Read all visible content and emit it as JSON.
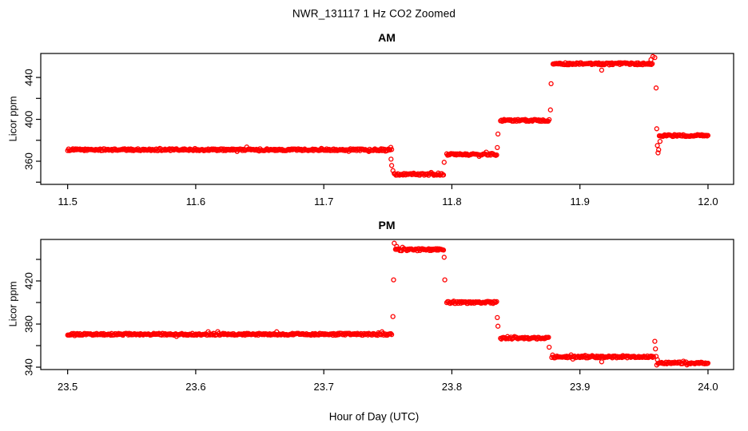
{
  "figure": {
    "title": "NWR_131117  1 Hz CO2 Zoomed",
    "xlabel": "Hour of Day (UTC)",
    "background": "#ffffff",
    "point_color": "#ff0000",
    "axis_color": "#000000"
  },
  "chart_data": [
    {
      "type": "scatter",
      "panel": "AM",
      "title": "AM",
      "ylabel": "Licor ppm",
      "marker": "open-circle",
      "grid": false,
      "xlim": [
        11.479,
        12.02
      ],
      "ylim": [
        337.9,
        462.9
      ],
      "xticks": [
        11.5,
        11.6,
        11.7,
        11.8,
        11.9,
        12.0
      ],
      "xtick_labels": [
        "11.5",
        "11.6",
        "11.7",
        "11.8",
        "11.9",
        "12.0"
      ],
      "yticks": [
        340,
        360,
        380,
        400,
        420,
        440
      ],
      "ytick_labels": [
        "",
        "360",
        "",
        "400",
        "",
        "440"
      ],
      "segments": [
        {
          "x0": 11.5,
          "x1": 11.753,
          "y": 371,
          "noise_ppm": 0.9
        },
        {
          "x0": 11.755,
          "x1": 11.7935,
          "y": 347.5,
          "noise_ppm": 0.9
        },
        {
          "x0": 11.796,
          "x1": 11.835,
          "y": 366.5,
          "noise_ppm": 0.9
        },
        {
          "x0": 11.838,
          "x1": 11.876,
          "y": 399,
          "noise_ppm": 0.9
        },
        {
          "x0": 11.879,
          "x1": 11.9565,
          "y": 453,
          "noise_ppm": 1.0
        },
        {
          "x0": 11.962,
          "x1": 12.0,
          "y": 384.5,
          "noise_ppm": 0.9
        }
      ],
      "points": [
        {
          "x": 11.7525,
          "y": 362
        },
        {
          "x": 11.753,
          "y": 356
        },
        {
          "x": 11.754,
          "y": 351
        },
        {
          "x": 11.794,
          "y": 359
        },
        {
          "x": 11.8355,
          "y": 373
        },
        {
          "x": 11.836,
          "y": 386
        },
        {
          "x": 11.877,
          "y": 409
        },
        {
          "x": 11.8775,
          "y": 434
        },
        {
          "x": 11.917,
          "y": 447
        },
        {
          "x": 11.9555,
          "y": 457
        },
        {
          "x": 11.957,
          "y": 460
        },
        {
          "x": 11.9585,
          "y": 459
        },
        {
          "x": 11.9595,
          "y": 430
        },
        {
          "x": 11.96,
          "y": 391
        },
        {
          "x": 11.9605,
          "y": 375
        },
        {
          "x": 11.961,
          "y": 368
        },
        {
          "x": 11.9615,
          "y": 371
        },
        {
          "x": 11.9625,
          "y": 379
        }
      ]
    },
    {
      "type": "scatter",
      "panel": "PM",
      "title": "PM",
      "ylabel": "Licor ppm",
      "marker": "open-circle",
      "grid": false,
      "xlim": [
        23.479,
        24.02
      ],
      "ylim": [
        337.8,
        458.5
      ],
      "xticks": [
        23.5,
        23.6,
        23.7,
        23.8,
        23.9,
        24.0
      ],
      "xtick_labels": [
        "23.5",
        "23.6",
        "23.7",
        "23.8",
        "23.9",
        "24.0"
      ],
      "yticks": [
        340,
        360,
        380,
        400,
        420,
        440
      ],
      "ytick_labels": [
        "340",
        "",
        "380",
        "",
        "420",
        ""
      ],
      "segments": [
        {
          "x0": 23.5,
          "x1": 23.753,
          "y": 370.5,
          "noise_ppm": 0.9
        },
        {
          "x0": 23.756,
          "x1": 23.7935,
          "y": 449,
          "noise_ppm": 1.0
        },
        {
          "x0": 23.796,
          "x1": 23.835,
          "y": 400,
          "noise_ppm": 0.9
        },
        {
          "x0": 23.838,
          "x1": 23.8755,
          "y": 367,
          "noise_ppm": 0.9
        },
        {
          "x0": 23.878,
          "x1": 23.9575,
          "y": 349.5,
          "noise_ppm": 0.9
        },
        {
          "x0": 23.961,
          "x1": 24.0,
          "y": 344,
          "noise_ppm": 0.9
        }
      ],
      "points": [
        {
          "x": 23.754,
          "y": 387
        },
        {
          "x": 23.7545,
          "y": 421
        },
        {
          "x": 23.755,
          "y": 455
        },
        {
          "x": 23.757,
          "y": 452
        },
        {
          "x": 23.794,
          "y": 442
        },
        {
          "x": 23.7945,
          "y": 421
        },
        {
          "x": 23.8355,
          "y": 386
        },
        {
          "x": 23.836,
          "y": 378
        },
        {
          "x": 23.876,
          "y": 358.5
        },
        {
          "x": 23.917,
          "y": 345
        },
        {
          "x": 23.9585,
          "y": 364
        },
        {
          "x": 23.959,
          "y": 357
        },
        {
          "x": 23.9595,
          "y": 350
        },
        {
          "x": 23.96,
          "y": 342
        },
        {
          "x": 23.9605,
          "y": 347
        }
      ]
    }
  ]
}
